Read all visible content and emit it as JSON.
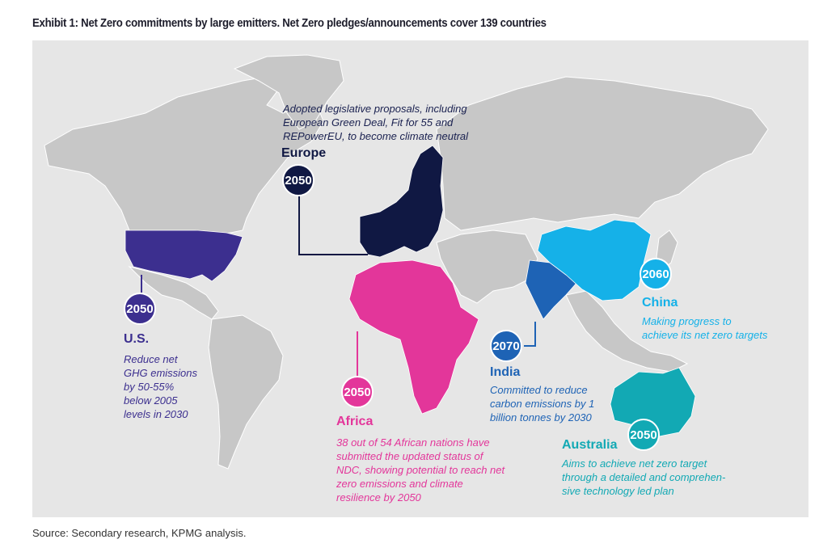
{
  "title": "Exhibit 1: Net Zero commitments by large emitters. Net Zero pledges/announcements cover 139 countries",
  "source": "Source: Secondary research, KPMG analysis.",
  "colors": {
    "background": "#e6e6e6",
    "land": "#c7c7c7",
    "europe": "#101843",
    "us": "#3c2f8f",
    "africa": "#e3369a",
    "india": "#1e63b5",
    "china": "#15b1e8",
    "australia": "#12a9b4"
  },
  "regions": {
    "europe": {
      "name": "Europe",
      "year": "2050",
      "desc": [
        "Adopted legislative proposals, including",
        "European Green Deal, Fit for 55 and",
        "REPowerEU, to become climate neutral"
      ]
    },
    "us": {
      "name": "U.S.",
      "year": "2050",
      "desc": [
        "Reduce net",
        "GHG emissions",
        "by 50-55%",
        "below 2005",
        "levels in 2030"
      ]
    },
    "africa": {
      "name": "Africa",
      "year": "2050",
      "desc": [
        "38 out of 54 African nations have",
        "submitted the updated status of",
        "NDC, showing potential to reach net",
        "zero emissions and climate",
        "resilience by 2050"
      ]
    },
    "india": {
      "name": "India",
      "year": "2070",
      "desc": [
        "Committed to reduce",
        "carbon emissions by 1",
        "billion tonnes by 2030"
      ]
    },
    "china": {
      "name": "China",
      "year": "2060",
      "desc": [
        "Making progress to",
        "achieve its net zero targets"
      ]
    },
    "australia": {
      "name": "Australia",
      "year": "2050",
      "desc": [
        "Aims to achieve net zero target",
        "through a detailed and comprehen-",
        "sive technology led plan"
      ]
    }
  }
}
